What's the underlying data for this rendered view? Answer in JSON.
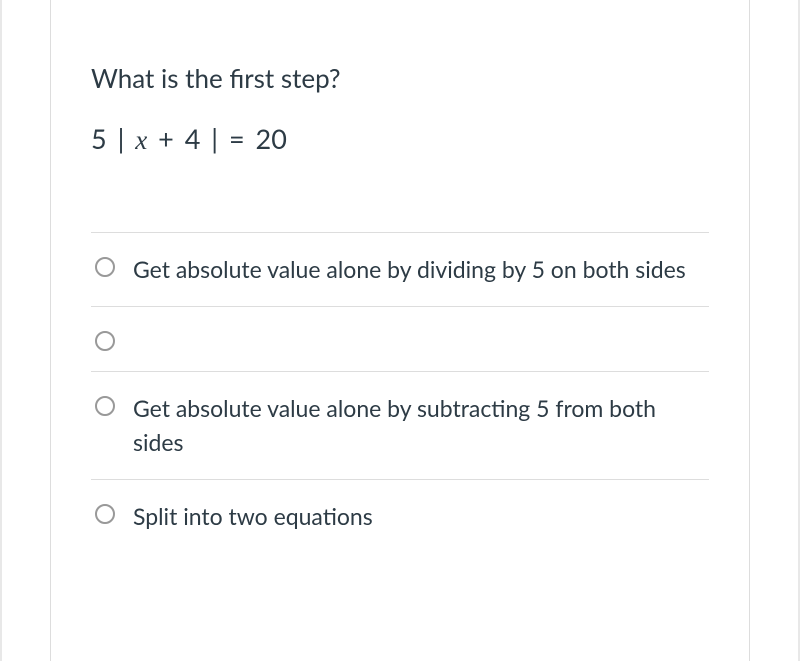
{
  "question": {
    "prompt": "What is the first step?",
    "equation_parts": {
      "coeff": "5 | ",
      "var": "x",
      "rest": "  + 4 |  = 20"
    }
  },
  "options": [
    {
      "label": "Get absolute value alone by dividing by 5 on both sides"
    },
    {
      "label": ""
    },
    {
      "label": "Get absolute value alone by subtracting 5 from both sides"
    },
    {
      "label": "Split into two equations"
    }
  ],
  "colors": {
    "text": "#2d3b45",
    "border": "#dddddd",
    "outer_border": "#e8e8e8",
    "radio_border": "#999999",
    "background": "#ffffff"
  }
}
